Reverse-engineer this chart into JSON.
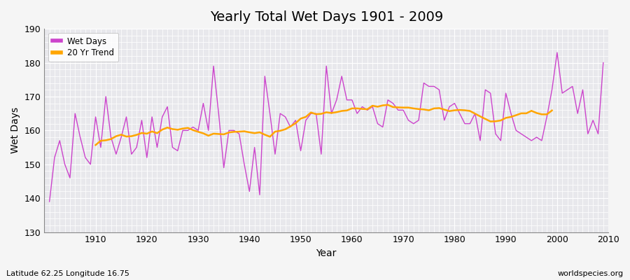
{
  "title": "Yearly Total Wet Days 1901 - 2009",
  "xlabel": "Year",
  "ylabel": "Wet Days",
  "footnote_left": "Latitude 62.25 Longitude 16.75",
  "footnote_right": "worldspecies.org",
  "years": [
    1901,
    1902,
    1903,
    1904,
    1905,
    1906,
    1907,
    1908,
    1909,
    1910,
    1911,
    1912,
    1913,
    1914,
    1915,
    1916,
    1917,
    1918,
    1919,
    1920,
    1921,
    1922,
    1923,
    1924,
    1925,
    1926,
    1927,
    1928,
    1929,
    1930,
    1931,
    1932,
    1933,
    1934,
    1935,
    1936,
    1937,
    1938,
    1939,
    1940,
    1941,
    1942,
    1943,
    1944,
    1945,
    1946,
    1947,
    1948,
    1949,
    1950,
    1951,
    1952,
    1953,
    1954,
    1955,
    1956,
    1957,
    1958,
    1959,
    1960,
    1961,
    1962,
    1963,
    1964,
    1965,
    1966,
    1967,
    1968,
    1969,
    1970,
    1971,
    1972,
    1973,
    1974,
    1975,
    1976,
    1977,
    1978,
    1979,
    1980,
    1981,
    1982,
    1983,
    1984,
    1985,
    1986,
    1987,
    1988,
    1989,
    1990,
    1991,
    1992,
    1993,
    1994,
    1995,
    1996,
    1997,
    1998,
    1999,
    2000,
    2001,
    2002,
    2003,
    2004,
    2005,
    2006,
    2007,
    2008,
    2009
  ],
  "wet_days": [
    139,
    152,
    157,
    150,
    146,
    165,
    158,
    152,
    150,
    164,
    155,
    170,
    158,
    153,
    158,
    164,
    153,
    155,
    163,
    152,
    164,
    155,
    164,
    167,
    155,
    154,
    160,
    160,
    161,
    160,
    168,
    160,
    179,
    165,
    149,
    160,
    160,
    159,
    150,
    142,
    155,
    141,
    176,
    165,
    153,
    165,
    164,
    161,
    163,
    154,
    163,
    165,
    165,
    153,
    179,
    165,
    169,
    176,
    169,
    169,
    165,
    167,
    166,
    167,
    162,
    161,
    169,
    168,
    166,
    166,
    163,
    162,
    163,
    174,
    173,
    173,
    172,
    163,
    167,
    168,
    165,
    162,
    162,
    165,
    157,
    172,
    171,
    159,
    157,
    171,
    165,
    160,
    159,
    158,
    157,
    158,
    157,
    164,
    172,
    183,
    171,
    172,
    173,
    165,
    172,
    159,
    163,
    159,
    180
  ],
  "wet_days_color": "#CC44CC",
  "trend_color": "#FFA500",
  "ylim": [
    130,
    190
  ],
  "yticks": [
    130,
    140,
    150,
    160,
    170,
    180,
    190
  ],
  "outer_bg_color": "#F5F5F5",
  "plot_bg_color": "#E8E8EC",
  "grid_color": "#FFFFFF",
  "xlim_left": 1900,
  "xlim_right": 2010
}
